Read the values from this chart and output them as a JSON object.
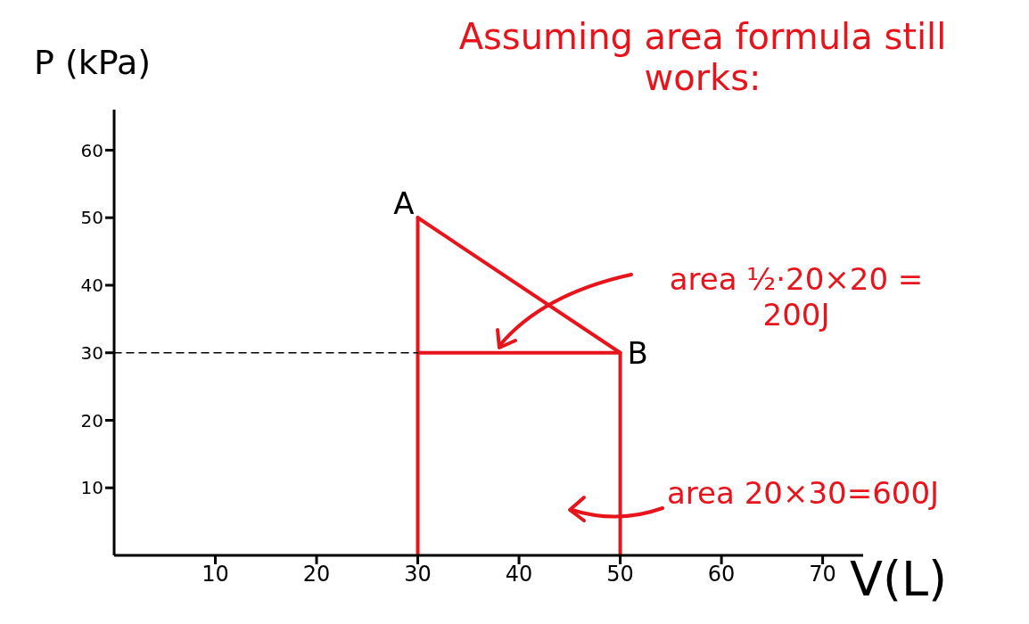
{
  "chart_data": {
    "type": "line",
    "title": "Assuming area formula still works:",
    "xlabel": "V(L)",
    "ylabel": "P (kPa)",
    "xlim": [
      0,
      74
    ],
    "ylim": [
      0,
      66
    ],
    "xticks": [
      10,
      20,
      30,
      40,
      50,
      60,
      70
    ],
    "yticks": [
      10,
      20,
      30,
      40,
      50,
      60
    ],
    "marker": "none",
    "series": [
      {
        "color": "#e8141c",
        "x": [
          30,
          50
        ],
        "values": [
          50,
          30
        ]
      },
      {
        "color": "#e8141c",
        "x": [
          30,
          30,
          30,
          50,
          50
        ],
        "values": [
          0,
          50,
          30,
          30,
          0
        ]
      },
      {
        "color": "#000000",
        "x": [
          0,
          30
        ],
        "values": [
          30,
          30
        ],
        "line_style": "dashed"
      }
    ],
    "annotations": [
      {
        "text": "A",
        "x": 30,
        "y": 50
      },
      {
        "text": "B",
        "x": 50,
        "y": 30
      },
      "area ½·20×20 = 200J",
      "area 20×30=600J"
    ]
  }
}
